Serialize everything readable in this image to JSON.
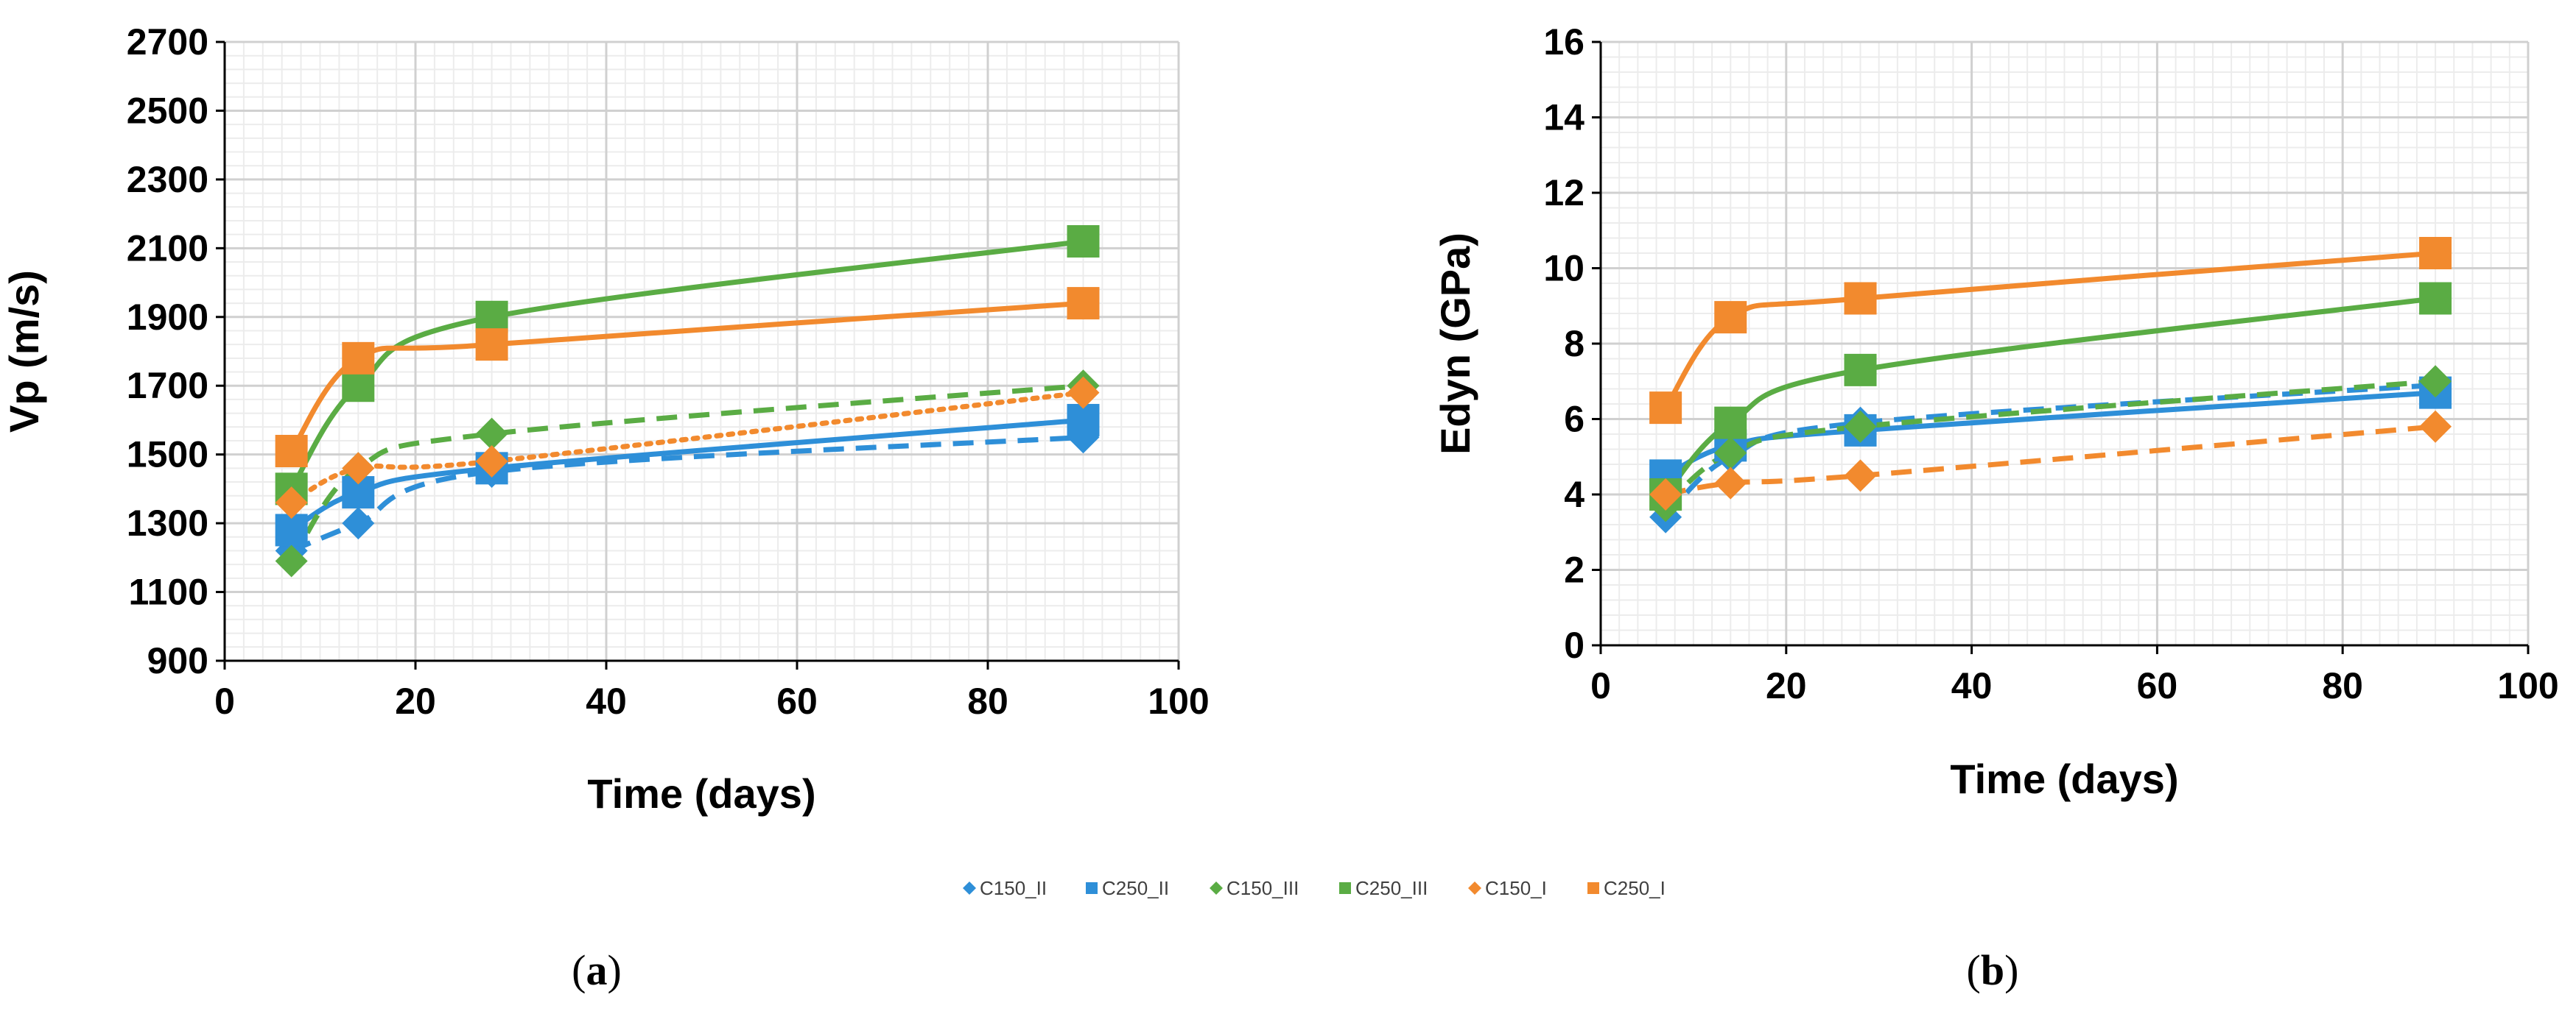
{
  "legend": [
    {
      "name": "C150_II",
      "color": "#2e8fd8",
      "marker": "diamond"
    },
    {
      "name": "C250_II",
      "color": "#2e8fd8",
      "marker": "square"
    },
    {
      "name": "C150_III",
      "color": "#5aac44",
      "marker": "diamond"
    },
    {
      "name": "C250_III",
      "color": "#5aac44",
      "marker": "square"
    },
    {
      "name": "C150_I",
      "color": "#f28a2e",
      "marker": "diamond"
    },
    {
      "name": "C250_I",
      "color": "#f28a2e",
      "marker": "square"
    }
  ],
  "chart_data": [
    {
      "type": "scatter",
      "panel": "a",
      "caption_open": "(",
      "caption_letter": "a",
      "caption_close": ")",
      "xlabel": "Time (days)",
      "ylabel": "Vp (m/s)",
      "xlim": [
        0,
        100
      ],
      "ylim": [
        900,
        2700
      ],
      "xticks": [
        0,
        20,
        40,
        60,
        80,
        100
      ],
      "yticks": [
        900,
        1100,
        1300,
        1500,
        1700,
        1900,
        2100,
        2300,
        2500,
        2700
      ],
      "x": [
        7,
        14,
        28,
        90
      ],
      "series": [
        {
          "name": "C150_II",
          "color": "#2e8fd8",
          "marker": "diamond",
          "line": "dash",
          "values": [
            1220,
            1300,
            1450,
            1550
          ]
        },
        {
          "name": "C250_II",
          "color": "#2e8fd8",
          "marker": "square",
          "line": "solid",
          "values": [
            1280,
            1390,
            1460,
            1600
          ]
        },
        {
          "name": "C150_III",
          "color": "#5aac44",
          "marker": "diamond",
          "line": "dash",
          "values": [
            1190,
            1460,
            1560,
            1700
          ]
        },
        {
          "name": "C250_III",
          "color": "#5aac44",
          "marker": "square",
          "line": "solid",
          "values": [
            1400,
            1700,
            1900,
            2120
          ]
        },
        {
          "name": "C150_I",
          "color": "#f28a2e",
          "marker": "diamond",
          "line": "dot",
          "values": [
            1360,
            1460,
            1480,
            1680
          ]
        },
        {
          "name": "C250_I",
          "color": "#f28a2e",
          "marker": "square",
          "line": "solid",
          "values": [
            1510,
            1780,
            1820,
            1940
          ]
        }
      ]
    },
    {
      "type": "scatter",
      "panel": "b",
      "caption_open": "(",
      "caption_letter": "b",
      "caption_close": ")",
      "xlabel": "Time (days)",
      "ylabel": "Edyn (GPa)",
      "xlim": [
        0,
        100
      ],
      "ylim": [
        0,
        16
      ],
      "xticks": [
        0,
        20,
        40,
        60,
        80,
        100
      ],
      "yticks": [
        0,
        2,
        4,
        6,
        8,
        10,
        12,
        14,
        16
      ],
      "x": [
        7,
        14,
        28,
        90
      ],
      "series": [
        {
          "name": "C150_II",
          "color": "#2e8fd8",
          "marker": "diamond",
          "line": "dash",
          "values": [
            3.4,
            5.0,
            5.9,
            6.9
          ]
        },
        {
          "name": "C250_II",
          "color": "#2e8fd8",
          "marker": "square",
          "line": "solid",
          "values": [
            4.5,
            5.3,
            5.7,
            6.7
          ]
        },
        {
          "name": "C150_III",
          "color": "#5aac44",
          "marker": "diamond",
          "line": "dash",
          "values": [
            3.7,
            5.1,
            5.8,
            7.0
          ]
        },
        {
          "name": "C250_III",
          "color": "#5aac44",
          "marker": "square",
          "line": "solid",
          "values": [
            4.0,
            5.9,
            7.3,
            9.2
          ]
        },
        {
          "name": "C150_I",
          "color": "#f28a2e",
          "marker": "diamond",
          "line": "dash",
          "values": [
            4.0,
            4.3,
            4.5,
            5.8
          ]
        },
        {
          "name": "C250_I",
          "color": "#f28a2e",
          "marker": "square",
          "line": "solid",
          "values": [
            6.3,
            8.7,
            9.2,
            10.4
          ]
        }
      ]
    }
  ]
}
